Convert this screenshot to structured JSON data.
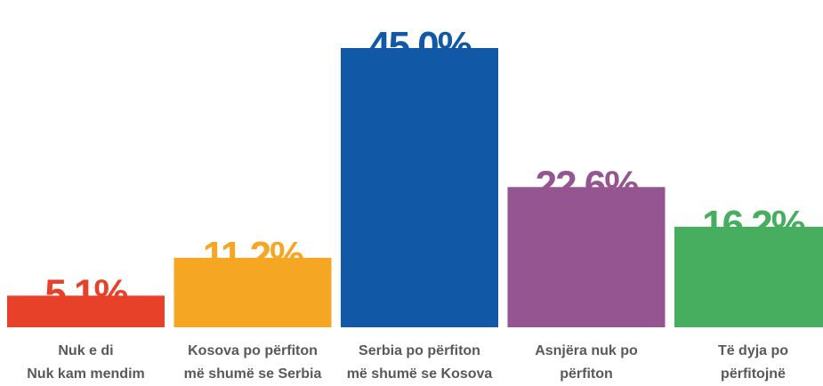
{
  "chart_data": {
    "type": "bar",
    "categories": [
      [
        "Nuk e di",
        "Nuk kam mendim"
      ],
      [
        "Kosova po përfiton",
        "më shumë se Serbia"
      ],
      [
        "Serbia po përfiton",
        "më shumë se Kosova"
      ],
      [
        "Asnjëra nuk po",
        "përfiton"
      ],
      [
        "Të dyja po",
        "përfitojnë"
      ]
    ],
    "values": [
      5.1,
      11.2,
      45.0,
      22.6,
      16.2
    ],
    "value_labels": [
      "5.1%",
      "11,2%",
      "45.0%",
      "22,6%",
      "16,2%"
    ],
    "colors": [
      "#e8412a",
      "#f5a623",
      "#1158a6",
      "#955591",
      "#47ae5f"
    ]
  }
}
